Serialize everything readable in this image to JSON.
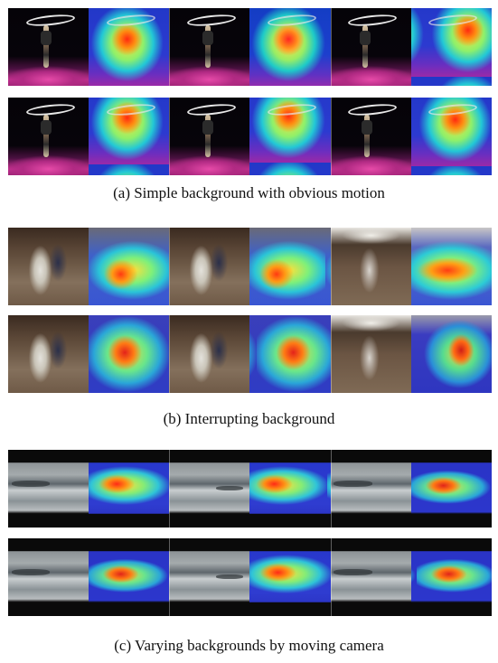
{
  "figure": {
    "groups": [
      {
        "id": "a",
        "caption": "(a) Simple background with obvious motion",
        "rows": 2,
        "frames_per_row": 3
      },
      {
        "id": "b",
        "caption": "(b) Interrupting background",
        "rows": 2,
        "frames_per_row": 3
      },
      {
        "id": "c",
        "caption": "(c) Varying backgrounds by moving camera",
        "rows": 2,
        "frames_per_row": 3
      }
    ]
  }
}
